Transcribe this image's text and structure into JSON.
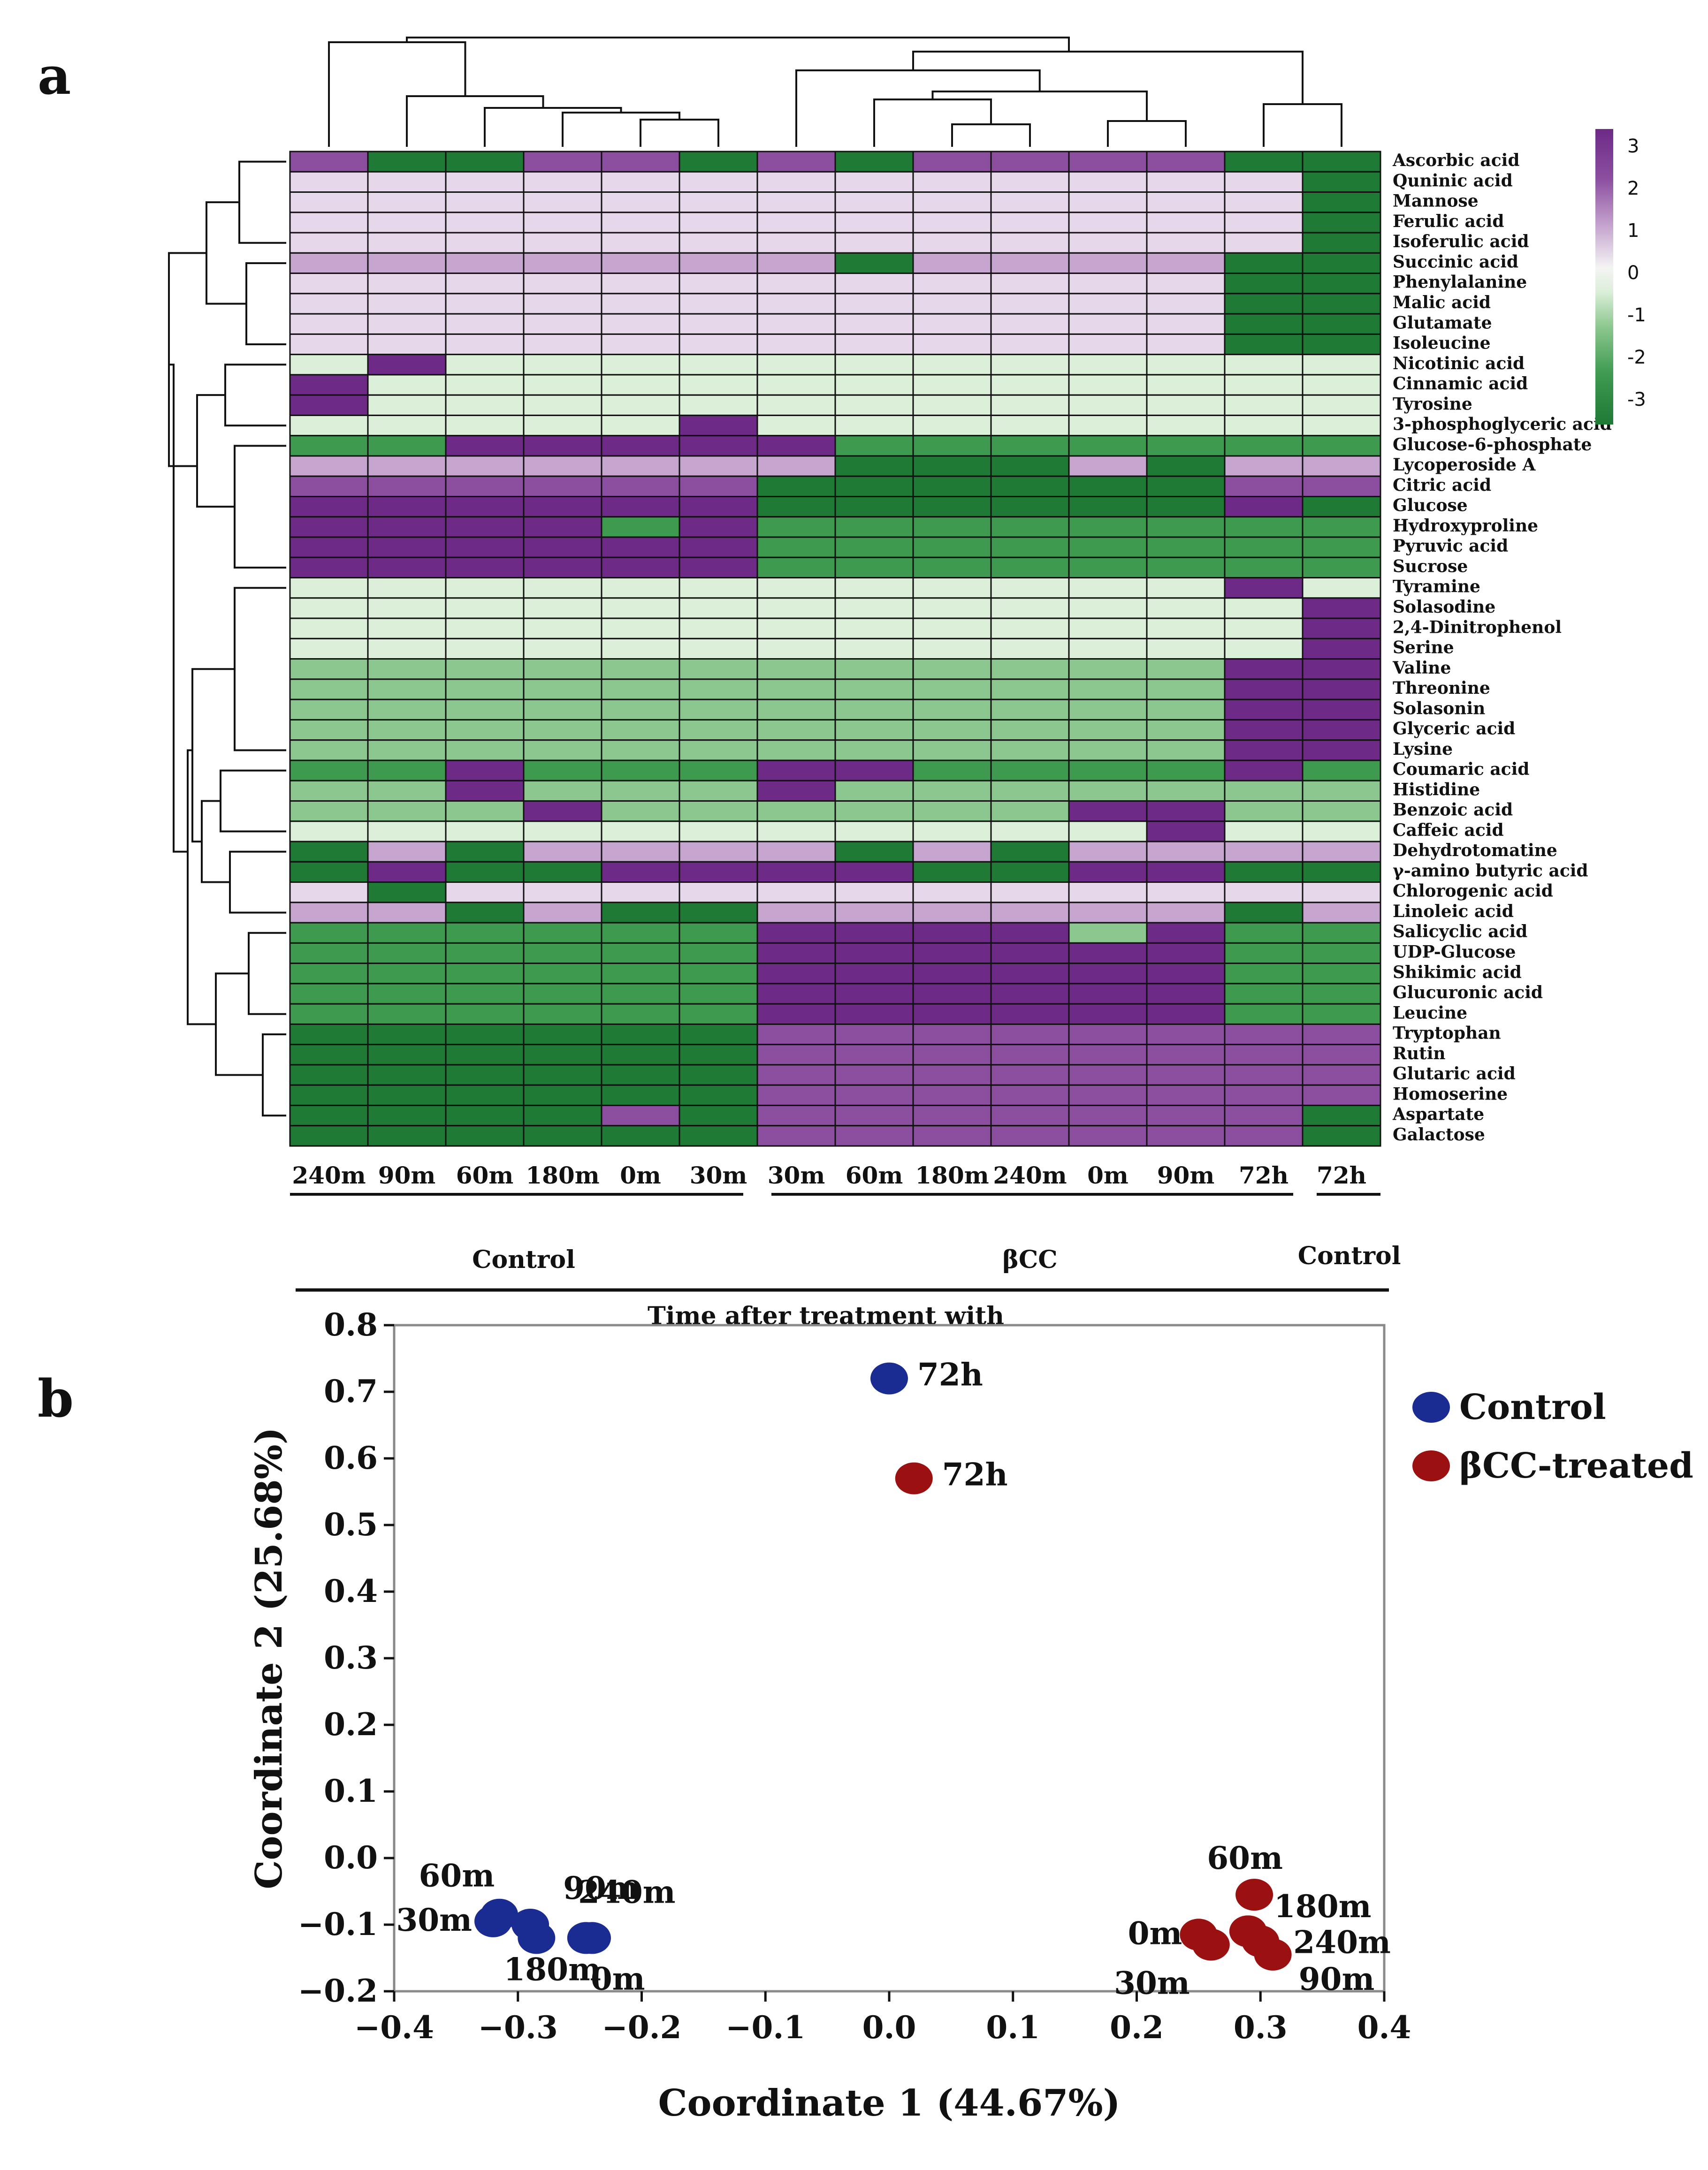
{
  "panels": {
    "a": "a",
    "b": "b"
  },
  "chart_data": [
    {
      "type": "heatmap",
      "title": "",
      "color_scale": {
        "min": -3,
        "max": 3,
        "ticks": [
          "3",
          "2",
          "1",
          "0",
          "-1",
          "-2",
          "-3"
        ],
        "colors": {
          "neg3": "#1e7a35",
          "neg2": "#3e9a4f",
          "neg1": "#8cc78f",
          "neg05": "#dcefd9",
          "zero": "#f4f4f4",
          "pos05": "#e7d7ea",
          "pos1": "#c6a5cf",
          "pos2": "#8c4fa0",
          "pos3": "#6d2a86"
        }
      },
      "columns": [
        "240m",
        "90m",
        "60m",
        "180m",
        "0m",
        "30m",
        "30m",
        "60m",
        "180m",
        "240m",
        "0m",
        "90m",
        "72h",
        "72h"
      ],
      "column_groups": [
        "Control",
        "βCC",
        "Control"
      ],
      "xlabel": "Time after treatment with",
      "rows": [
        {
          "name": "Ascorbic acid",
          "v": [
            2,
            -3,
            -3,
            2,
            2,
            -3,
            2,
            -3,
            2,
            2,
            2,
            2,
            -3,
            -3
          ]
        },
        {
          "name": "Quninic acid",
          "v": [
            0.5,
            0.5,
            0.5,
            0.5,
            0.5,
            0.5,
            0.5,
            0.5,
            0.5,
            0.5,
            0.5,
            0.5,
            0.5,
            -3
          ]
        },
        {
          "name": "Mannose",
          "v": [
            0.5,
            0.5,
            0.5,
            0.5,
            0.5,
            0.5,
            0.5,
            0.5,
            0.5,
            0.5,
            0.5,
            0.5,
            0.5,
            -3
          ]
        },
        {
          "name": "Ferulic acid",
          "v": [
            0.5,
            0.5,
            0.5,
            0.5,
            0.5,
            0.5,
            0.5,
            0.5,
            0.5,
            0.5,
            0.5,
            0.5,
            0.5,
            -3
          ]
        },
        {
          "name": "Isoferulic acid",
          "v": [
            0.5,
            0.5,
            0.5,
            0.5,
            0.5,
            0.5,
            0.5,
            0.5,
            0.5,
            0.5,
            0.5,
            0.5,
            0.5,
            -3
          ]
        },
        {
          "name": "Succinic acid",
          "v": [
            1,
            1,
            1,
            1,
            1,
            1,
            1,
            -3,
            1,
            1,
            1,
            1,
            -3,
            -3
          ]
        },
        {
          "name": "Phenylalanine",
          "v": [
            0.5,
            0.5,
            0.5,
            0.5,
            0.5,
            0.5,
            0.5,
            0.5,
            0.5,
            0.5,
            0.5,
            0.5,
            -3,
            -3
          ]
        },
        {
          "name": "Malic acid",
          "v": [
            0.5,
            0.5,
            0.5,
            0.5,
            0.5,
            0.5,
            0.5,
            0.5,
            0.5,
            0.5,
            0.5,
            0.5,
            -3,
            -3
          ]
        },
        {
          "name": "Glutamate",
          "v": [
            0.5,
            0.5,
            0.5,
            0.5,
            0.5,
            0.5,
            0.5,
            0.5,
            0.5,
            0.5,
            0.5,
            0.5,
            -3,
            -3
          ]
        },
        {
          "name": "Isoleucine",
          "v": [
            0.5,
            0.5,
            0.5,
            0.5,
            0.5,
            0.5,
            0.5,
            0.5,
            0.5,
            0.5,
            0.5,
            0.5,
            -3,
            -3
          ]
        },
        {
          "name": "Nicotinic acid",
          "v": [
            -0.5,
            3,
            -0.5,
            -0.5,
            -0.5,
            -0.5,
            -0.5,
            -0.5,
            -0.5,
            -0.5,
            -0.5,
            -0.5,
            -0.5,
            -0.5
          ]
        },
        {
          "name": "Cinnamic acid",
          "v": [
            3,
            -0.5,
            -0.5,
            -0.5,
            -0.5,
            -0.5,
            -0.5,
            -0.5,
            -0.5,
            -0.5,
            -0.5,
            -0.5,
            -0.5,
            -0.5
          ]
        },
        {
          "name": "Tyrosine",
          "v": [
            3,
            -0.5,
            -0.5,
            -0.5,
            -0.5,
            -0.5,
            -0.5,
            -0.5,
            -0.5,
            -0.5,
            -0.5,
            -0.5,
            -0.5,
            -0.5
          ]
        },
        {
          "name": "3-phosphoglyceric acid",
          "v": [
            -0.5,
            -0.5,
            -0.5,
            -0.5,
            -0.5,
            3,
            -0.5,
            -0.5,
            -0.5,
            -0.5,
            -0.5,
            -0.5,
            -0.5,
            -0.5
          ]
        },
        {
          "name": "Glucose-6-phosphate",
          "v": [
            -2,
            -2,
            3,
            3,
            3,
            3,
            3,
            -2,
            -2,
            -2,
            -2,
            -2,
            -2,
            -2
          ]
        },
        {
          "name": "Lycoperoside A",
          "v": [
            1,
            1,
            1,
            1,
            1,
            1,
            1,
            -3,
            -3,
            -3,
            1,
            -3,
            1,
            1
          ]
        },
        {
          "name": "Citric acid",
          "v": [
            2,
            2,
            2,
            2,
            2,
            2,
            -3,
            -3,
            -3,
            -3,
            -3,
            -3,
            2,
            2
          ]
        },
        {
          "name": "Glucose",
          "v": [
            3,
            3,
            3,
            3,
            3,
            3,
            -3,
            -3,
            -3,
            -3,
            -3,
            -3,
            3,
            -3
          ]
        },
        {
          "name": "Hydroxyproline",
          "v": [
            3,
            3,
            3,
            3,
            -2,
            3,
            -2,
            -2,
            -2,
            -2,
            -2,
            -2,
            -2,
            -2
          ]
        },
        {
          "name": "Pyruvic acid",
          "v": [
            3,
            3,
            3,
            3,
            3,
            3,
            -2,
            -2,
            -2,
            -2,
            -2,
            -2,
            -2,
            -2
          ]
        },
        {
          "name": "Sucrose",
          "v": [
            3,
            3,
            3,
            3,
            3,
            3,
            -2,
            -2,
            -2,
            -2,
            -2,
            -2,
            -2,
            -2
          ]
        },
        {
          "name": "Tyramine",
          "v": [
            -0.5,
            -0.5,
            -0.5,
            -0.5,
            -0.5,
            -0.5,
            -0.5,
            -0.5,
            -0.5,
            -0.5,
            -0.5,
            -0.5,
            3,
            -0.5
          ]
        },
        {
          "name": "Solasodine",
          "v": [
            -0.5,
            -0.5,
            -0.5,
            -0.5,
            -0.5,
            -0.5,
            -0.5,
            -0.5,
            -0.5,
            -0.5,
            -0.5,
            -0.5,
            -0.5,
            3
          ]
        },
        {
          "name": "2,4-Dinitrophenol",
          "v": [
            -0.5,
            -0.5,
            -0.5,
            -0.5,
            -0.5,
            -0.5,
            -0.5,
            -0.5,
            -0.5,
            -0.5,
            -0.5,
            -0.5,
            -0.5,
            3
          ]
        },
        {
          "name": "Serine",
          "v": [
            -0.5,
            -0.5,
            -0.5,
            -0.5,
            -0.5,
            -0.5,
            -0.5,
            -0.5,
            -0.5,
            -0.5,
            -0.5,
            -0.5,
            -0.5,
            3
          ]
        },
        {
          "name": "Valine",
          "v": [
            -1,
            -1,
            -1,
            -1,
            -1,
            -1,
            -1,
            -1,
            -1,
            -1,
            -1,
            -1,
            3,
            3
          ]
        },
        {
          "name": "Threonine",
          "v": [
            -1,
            -1,
            -1,
            -1,
            -1,
            -1,
            -1,
            -1,
            -1,
            -1,
            -1,
            -1,
            3,
            3
          ]
        },
        {
          "name": "Solasonin",
          "v": [
            -1,
            -1,
            -1,
            -1,
            -1,
            -1,
            -1,
            -1,
            -1,
            -1,
            -1,
            -1,
            3,
            3
          ]
        },
        {
          "name": "Glyceric acid",
          "v": [
            -1,
            -1,
            -1,
            -1,
            -1,
            -1,
            -1,
            -1,
            -1,
            -1,
            -1,
            -1,
            3,
            3
          ]
        },
        {
          "name": "Lysine",
          "v": [
            -1,
            -1,
            -1,
            -1,
            -1,
            -1,
            -1,
            -1,
            -1,
            -1,
            -1,
            -1,
            3,
            3
          ]
        },
        {
          "name": "Coumaric acid",
          "v": [
            -2,
            -2,
            3,
            -2,
            -2,
            -2,
            3,
            3,
            -2,
            -2,
            -2,
            -2,
            3,
            -2
          ]
        },
        {
          "name": "Histidine",
          "v": [
            -1,
            -1,
            3,
            -1,
            -1,
            -1,
            3,
            -1,
            -1,
            -1,
            -1,
            -1,
            -1,
            -1
          ]
        },
        {
          "name": "Benzoic acid",
          "v": [
            -1,
            -1,
            -1,
            3,
            -1,
            -1,
            -1,
            -1,
            -1,
            -1,
            3,
            3,
            -1,
            -1
          ]
        },
        {
          "name": "Caffeic acid",
          "v": [
            -0.5,
            -0.5,
            -0.5,
            -0.5,
            -0.5,
            -0.5,
            -0.5,
            -0.5,
            -0.5,
            -0.5,
            -0.5,
            3,
            -0.5,
            -0.5
          ]
        },
        {
          "name": "Dehydrotomatine",
          "v": [
            -3,
            1,
            -3,
            1,
            1,
            1,
            1,
            -3,
            1,
            -3,
            1,
            1,
            1,
            1
          ]
        },
        {
          "name": "γ-amino butyric acid",
          "v": [
            -3,
            3,
            -3,
            -3,
            3,
            3,
            3,
            3,
            -3,
            -3,
            3,
            3,
            -3,
            -3
          ]
        },
        {
          "name": "Chlorogenic acid",
          "v": [
            0.5,
            -3,
            0.5,
            0.5,
            0.5,
            0.5,
            0.5,
            0.5,
            0.5,
            0.5,
            0.5,
            0.5,
            0.5,
            0.5
          ]
        },
        {
          "name": "Linoleic acid",
          "v": [
            1,
            1,
            -3,
            1,
            -3,
            -3,
            1,
            1,
            1,
            1,
            1,
            1,
            -3,
            1
          ]
        },
        {
          "name": "Salicyclic acid",
          "v": [
            -2,
            -2,
            -2,
            -2,
            -2,
            -2,
            3,
            3,
            3,
            3,
            -1,
            3,
            -2,
            -2
          ]
        },
        {
          "name": "UDP-Glucose",
          "v": [
            -2,
            -2,
            -2,
            -2,
            -2,
            -2,
            3,
            3,
            3,
            3,
            3,
            3,
            -2,
            -2
          ]
        },
        {
          "name": "Shikimic acid",
          "v": [
            -2,
            -2,
            -2,
            -2,
            -2,
            -2,
            3,
            3,
            3,
            3,
            3,
            3,
            -2,
            -2
          ]
        },
        {
          "name": "Glucuronic acid",
          "v": [
            -2,
            -2,
            -2,
            -2,
            -2,
            -2,
            3,
            3,
            3,
            3,
            3,
            3,
            -2,
            -2
          ]
        },
        {
          "name": "Leucine",
          "v": [
            -2,
            -2,
            -2,
            -2,
            -2,
            -2,
            3,
            3,
            3,
            3,
            3,
            3,
            -2,
            -2
          ]
        },
        {
          "name": "Tryptophan",
          "v": [
            -3,
            -3,
            -3,
            -3,
            -3,
            -3,
            2,
            2,
            2,
            2,
            2,
            2,
            2,
            2
          ]
        },
        {
          "name": "Rutin",
          "v": [
            -3,
            -3,
            -3,
            -3,
            -3,
            -3,
            2,
            2,
            2,
            2,
            2,
            2,
            2,
            2
          ]
        },
        {
          "name": "Glutaric acid",
          "v": [
            -3,
            -3,
            -3,
            -3,
            -3,
            -3,
            2,
            2,
            2,
            2,
            2,
            2,
            2,
            2
          ]
        },
        {
          "name": "Homoserine",
          "v": [
            -3,
            -3,
            -3,
            -3,
            -3,
            -3,
            2,
            2,
            2,
            2,
            2,
            2,
            2,
            2
          ]
        },
        {
          "name": "Aspartate",
          "v": [
            -3,
            -3,
            -3,
            -3,
            2,
            -3,
            2,
            2,
            2,
            2,
            2,
            2,
            2,
            -3
          ]
        },
        {
          "name": "Galactose",
          "v": [
            -3,
            -3,
            -3,
            -3,
            -3,
            -3,
            2,
            2,
            2,
            2,
            2,
            2,
            2,
            -3
          ]
        }
      ]
    },
    {
      "type": "scatter",
      "title": "",
      "xlabel": "Coordinate 1 (44.67%)",
      "ylabel": "Coordinate 2 (25.68%)",
      "xlim": [
        -0.4,
        0.4
      ],
      "ylim": [
        -0.2,
        0.8
      ],
      "xticks": [
        "−0.4",
        "−0.3",
        "−0.2",
        "−0.1",
        "0.0",
        "0.1",
        "0.2",
        "0.3",
        "0.4"
      ],
      "yticks": [
        "0.8",
        "0.7",
        "0.6",
        "0.5",
        "0.4",
        "0.3",
        "0.2",
        "0.1",
        "0.0",
        "−0.1",
        "−0.2"
      ],
      "legend_position": "top-right",
      "series": [
        {
          "name": "Control",
          "color": "#1a2c91",
          "points": [
            {
              "label": "72h",
              "x": 0.0,
              "y": 0.72
            },
            {
              "label": "60m",
              "x": -0.315,
              "y": -0.085
            },
            {
              "label": "90m",
              "x": -0.29,
              "y": -0.1
            },
            {
              "label": "30m",
              "x": -0.32,
              "y": -0.095
            },
            {
              "label": "180m",
              "x": -0.285,
              "y": -0.12
            },
            {
              "label": "240m",
              "x": -0.24,
              "y": -0.12
            },
            {
              "label": "0m",
              "x": -0.245,
              "y": -0.12
            }
          ]
        },
        {
          "name": "βCC-treated",
          "color": "#9b1010",
          "points": [
            {
              "label": "72h",
              "x": 0.02,
              "y": 0.57
            },
            {
              "label": "60m",
              "x": 0.295,
              "y": -0.055
            },
            {
              "label": "180m",
              "x": 0.29,
              "y": -0.11
            },
            {
              "label": "0m",
              "x": 0.25,
              "y": -0.115
            },
            {
              "label": "30m",
              "x": 0.26,
              "y": -0.13
            },
            {
              "label": "240m",
              "x": 0.3,
              "y": -0.125
            },
            {
              "label": "90m",
              "x": 0.31,
              "y": -0.145
            }
          ]
        }
      ]
    }
  ]
}
